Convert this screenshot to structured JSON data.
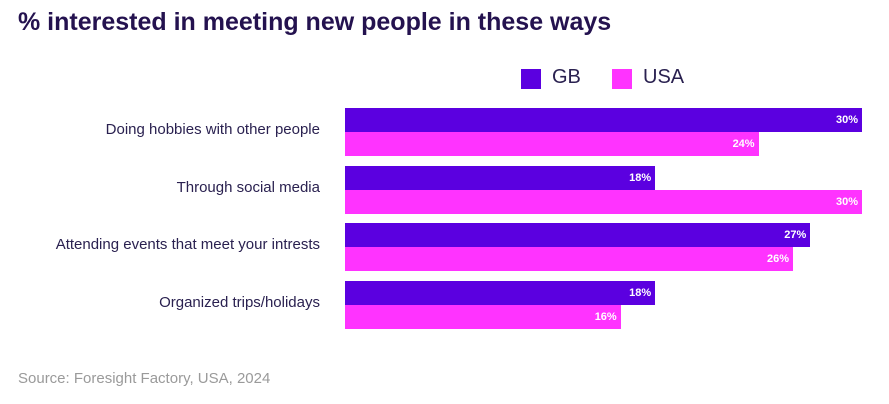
{
  "chart_data": {
    "type": "bar",
    "orientation": "horizontal",
    "title": "% interested in meeting new people in these ways",
    "categories": [
      "Doing hobbies with other people",
      "Through social media",
      "Attending events that meet your intrests",
      "Organized trips/holidays"
    ],
    "series": [
      {
        "name": "GB",
        "color": "#5b00e0",
        "values": [
          30,
          18,
          27,
          18
        ],
        "labels": [
          "30%",
          "18%",
          "27%",
          "18%"
        ]
      },
      {
        "name": "USA",
        "color": "#ff33ff",
        "values": [
          24,
          30,
          26,
          16
        ],
        "labels": [
          "24%",
          "30%",
          "26%",
          "16%"
        ]
      }
    ],
    "xlim": [
      0,
      30
    ],
    "legend": "top",
    "grid": false,
    "source": "Source: Foresight Factory, USA, 2024"
  }
}
